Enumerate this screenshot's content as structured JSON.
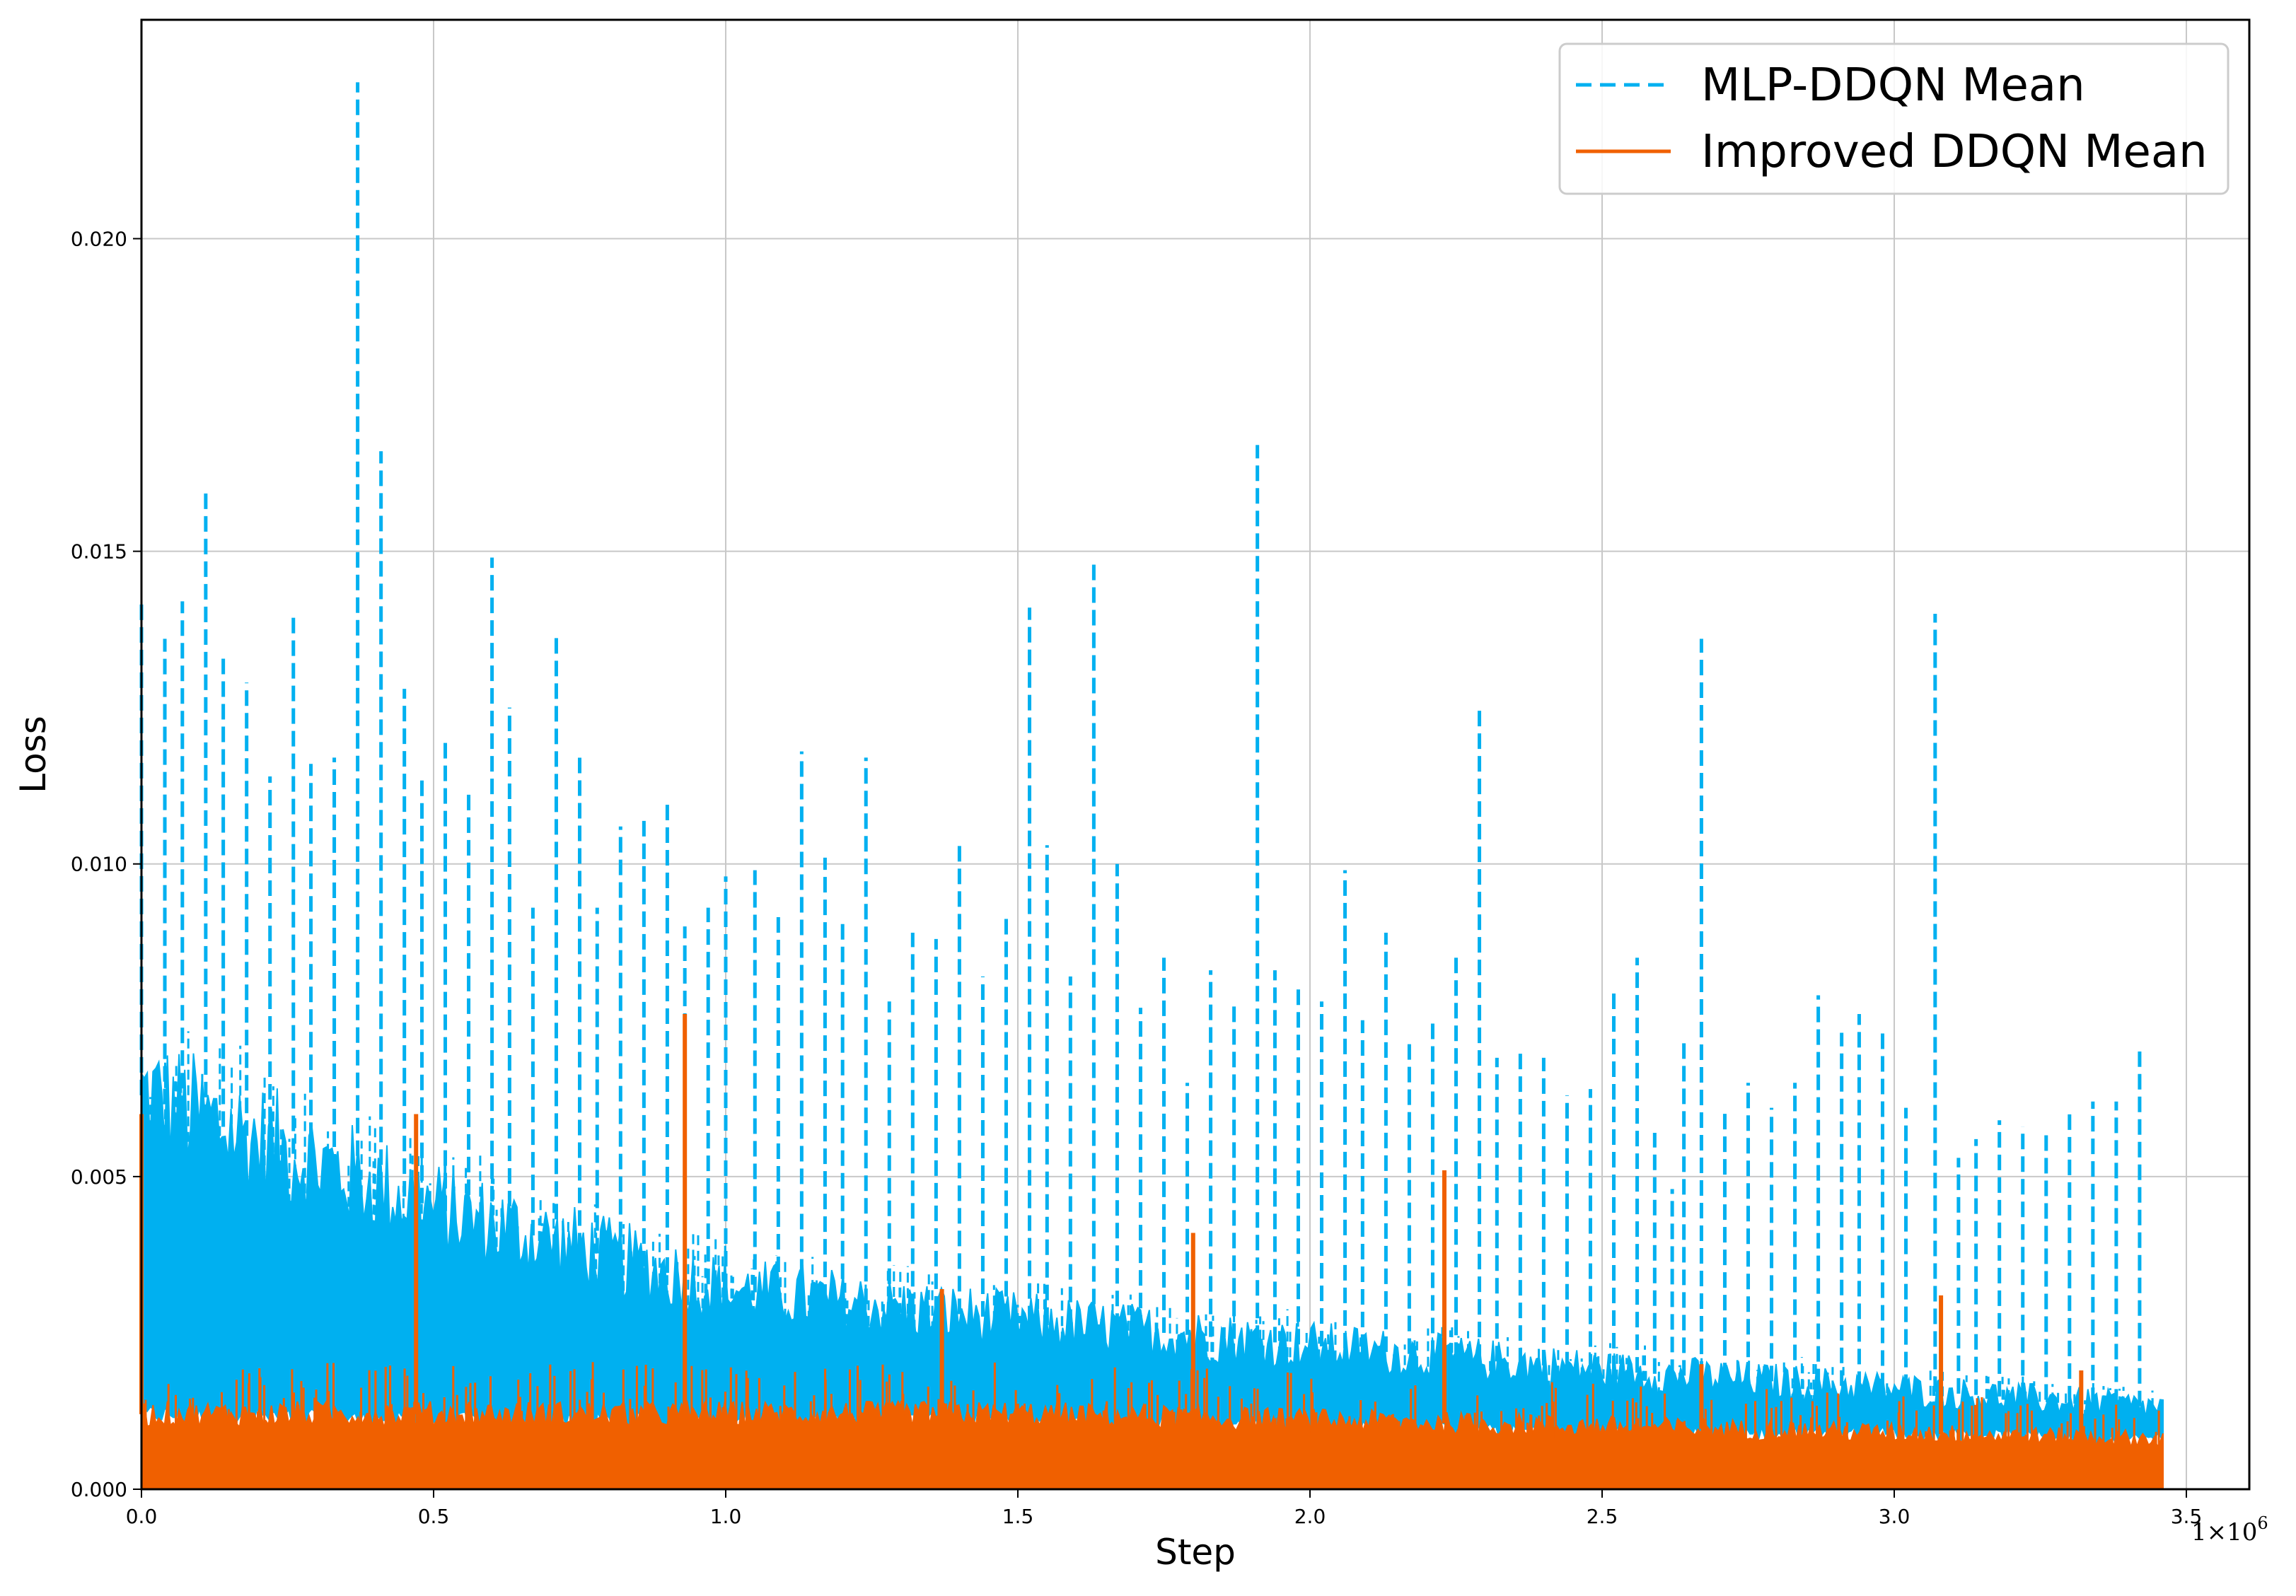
{
  "chart_data": {
    "type": "line",
    "title": "",
    "xlabel": "Step",
    "ylabel": "Loss",
    "x_offset_label": "1×10",
    "x_offset_exponent": "6",
    "xlim": [
      0,
      3.6
    ],
    "ylim": [
      0,
      0.0235
    ],
    "grid": true,
    "legend_placement": "top-right",
    "x_ticks": [
      "0.0",
      "0.5",
      "1.0",
      "1.5",
      "2.0",
      "2.5",
      "3.0",
      "3.5"
    ],
    "x_tick_values": [
      0.0,
      0.5,
      1.0,
      1.5,
      2.0,
      2.5,
      3.0,
      3.5
    ],
    "y_ticks": [
      "0.000",
      "0.005",
      "0.010",
      "0.015",
      "0.020"
    ],
    "y_tick_values": [
      0.0,
      0.005,
      0.01,
      0.015,
      0.02
    ],
    "series": [
      {
        "name": "MLP-DDQN Mean",
        "color": "#00b0f0",
        "style": "dashed",
        "x_end": 3.46,
        "band_upper": [
          [
            0,
            0.0063
          ],
          [
            0.5,
            0.0045
          ],
          [
            1.0,
            0.0032
          ],
          [
            1.5,
            0.0027
          ],
          [
            2.0,
            0.0023
          ],
          [
            2.5,
            0.0019
          ],
          [
            3.0,
            0.0016
          ],
          [
            3.46,
            0.0013
          ]
        ],
        "band_lower": [
          [
            0,
            0.0012
          ],
          [
            0.5,
            0.0011
          ],
          [
            1.0,
            0.0011
          ],
          [
            1.5,
            0.0011
          ],
          [
            2.0,
            0.001
          ],
          [
            2.5,
            0.0009
          ],
          [
            3.0,
            0.0009
          ],
          [
            3.46,
            0.0008
          ]
        ],
        "spikes": [
          [
            0.0,
            0.0142
          ],
          [
            0.04,
            0.0136
          ],
          [
            0.07,
            0.0142
          ],
          [
            0.11,
            0.016
          ],
          [
            0.14,
            0.0133
          ],
          [
            0.18,
            0.0129
          ],
          [
            0.22,
            0.0114
          ],
          [
            0.26,
            0.014
          ],
          [
            0.29,
            0.0116
          ],
          [
            0.33,
            0.0117
          ],
          [
            0.37,
            0.0225
          ],
          [
            0.41,
            0.0166
          ],
          [
            0.45,
            0.0128
          ],
          [
            0.48,
            0.0114
          ],
          [
            0.52,
            0.012
          ],
          [
            0.56,
            0.0112
          ],
          [
            0.6,
            0.0149
          ],
          [
            0.63,
            0.0125
          ],
          [
            0.67,
            0.0093
          ],
          [
            0.71,
            0.0137
          ],
          [
            0.75,
            0.0118
          ],
          [
            0.78,
            0.0093
          ],
          [
            0.82,
            0.0106
          ],
          [
            0.86,
            0.0108
          ],
          [
            0.9,
            0.011
          ],
          [
            0.93,
            0.009
          ],
          [
            0.97,
            0.0093
          ],
          [
            1.0,
            0.0098
          ],
          [
            1.05,
            0.0099
          ],
          [
            1.09,
            0.0092
          ],
          [
            1.13,
            0.0118
          ],
          [
            1.17,
            0.0101
          ],
          [
            1.2,
            0.0091
          ],
          [
            1.24,
            0.0117
          ],
          [
            1.28,
            0.0078
          ],
          [
            1.32,
            0.0089
          ],
          [
            1.36,
            0.0088
          ],
          [
            1.4,
            0.0104
          ],
          [
            1.44,
            0.0082
          ],
          [
            1.48,
            0.0092
          ],
          [
            1.52,
            0.0141
          ],
          [
            1.55,
            0.0103
          ],
          [
            1.59,
            0.0082
          ],
          [
            1.63,
            0.0148
          ],
          [
            1.67,
            0.01
          ],
          [
            1.71,
            0.0077
          ],
          [
            1.75,
            0.0085
          ],
          [
            1.79,
            0.0065
          ],
          [
            1.83,
            0.0083
          ],
          [
            1.87,
            0.0078
          ],
          [
            1.91,
            0.0167
          ],
          [
            1.94,
            0.0083
          ],
          [
            1.98,
            0.008
          ],
          [
            2.02,
            0.0078
          ],
          [
            2.06,
            0.0099
          ],
          [
            2.09,
            0.0075
          ],
          [
            2.13,
            0.0089
          ],
          [
            2.17,
            0.0072
          ],
          [
            2.21,
            0.0075
          ],
          [
            2.25,
            0.0085
          ],
          [
            2.29,
            0.0125
          ],
          [
            2.32,
            0.0069
          ],
          [
            2.36,
            0.007
          ],
          [
            2.4,
            0.0069
          ],
          [
            2.44,
            0.0063
          ],
          [
            2.48,
            0.0064
          ],
          [
            2.52,
            0.008
          ],
          [
            2.56,
            0.0085
          ],
          [
            2.59,
            0.0057
          ],
          [
            2.62,
            0.0048
          ],
          [
            2.64,
            0.0072
          ],
          [
            2.67,
            0.0136
          ],
          [
            2.71,
            0.0061
          ],
          [
            2.75,
            0.0065
          ],
          [
            2.79,
            0.0061
          ],
          [
            2.83,
            0.0065
          ],
          [
            2.87,
            0.0079
          ],
          [
            2.91,
            0.0073
          ],
          [
            2.94,
            0.0076
          ],
          [
            2.98,
            0.0073
          ],
          [
            3.02,
            0.0061
          ],
          [
            3.07,
            0.014
          ],
          [
            3.11,
            0.0053
          ],
          [
            3.14,
            0.0056
          ],
          [
            3.18,
            0.0059
          ],
          [
            3.22,
            0.0058
          ],
          [
            3.26,
            0.0057
          ],
          [
            3.3,
            0.0061
          ],
          [
            3.34,
            0.0062
          ],
          [
            3.38,
            0.0062
          ],
          [
            3.42,
            0.007
          ]
        ]
      },
      {
        "name": "Improved DDQN Mean",
        "color": "#f06000",
        "style": "solid",
        "x_end": 3.46,
        "band_upper": [
          [
            0,
            0.0012
          ],
          [
            0.5,
            0.0012
          ],
          [
            1.0,
            0.0012
          ],
          [
            1.5,
            0.0012
          ],
          [
            2.0,
            0.0011
          ],
          [
            2.5,
            0.001
          ],
          [
            3.0,
            0.0009
          ],
          [
            3.46,
            0.0008
          ]
        ],
        "band_lower": [
          [
            0,
            0.0
          ],
          [
            3.46,
            0.0
          ]
        ],
        "spikes": [
          [
            0.0,
            0.006
          ],
          [
            0.47,
            0.006
          ],
          [
            0.93,
            0.0076
          ],
          [
            1.37,
            0.0032
          ],
          [
            1.8,
            0.0041
          ],
          [
            2.23,
            0.0051
          ],
          [
            2.67,
            0.002
          ],
          [
            3.08,
            0.0031
          ],
          [
            3.32,
            0.0019
          ]
        ]
      }
    ]
  }
}
